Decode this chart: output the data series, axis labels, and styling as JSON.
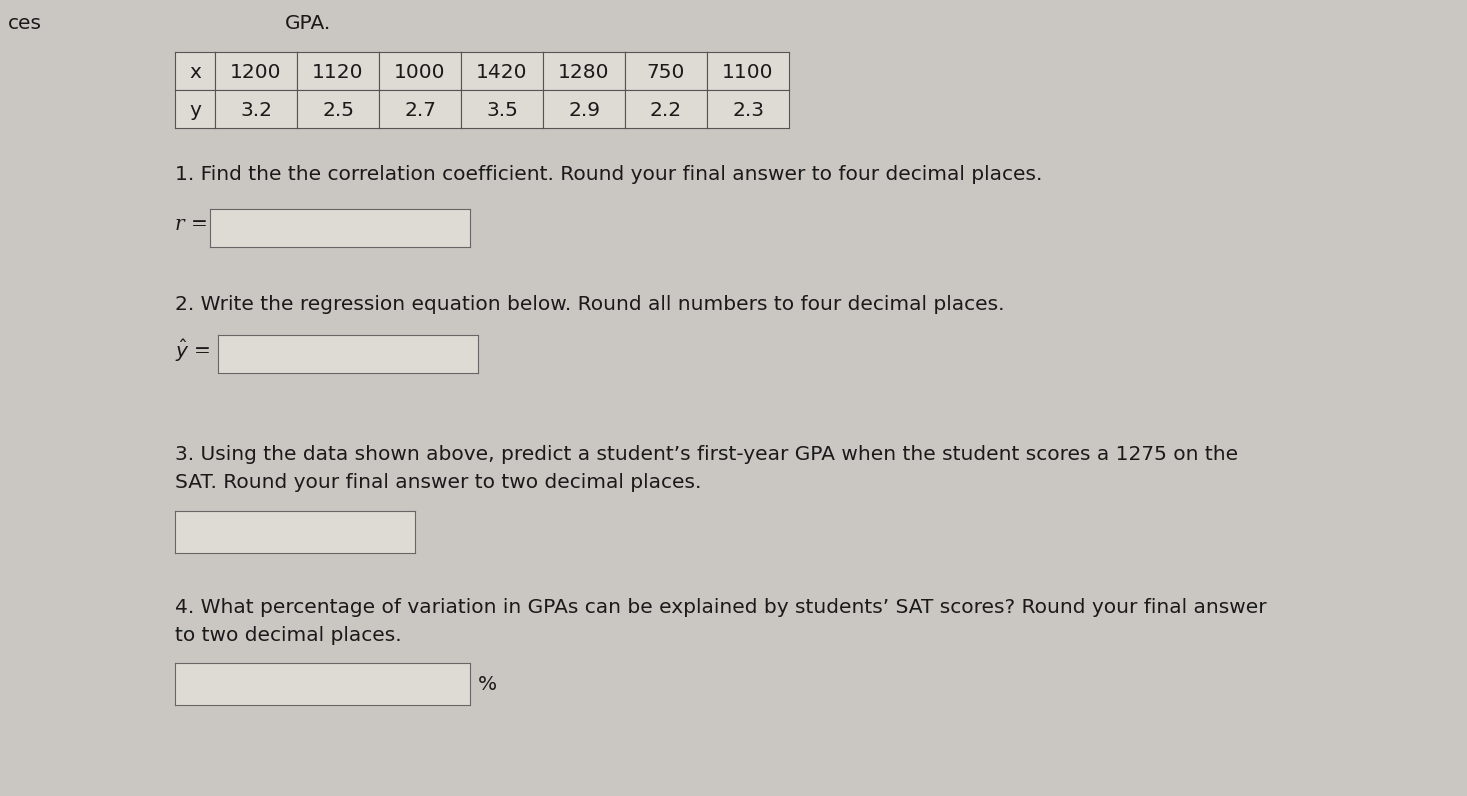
{
  "title_ces": "ces",
  "title_gpa": "GPA.",
  "table_x": [
    "1200",
    "1120",
    "1000",
    "1420",
    "1280",
    "750",
    "1100"
  ],
  "table_y": [
    "3.2",
    "2.5",
    "2.7",
    "3.5",
    "2.9",
    "2.2",
    "2.3"
  ],
  "row_labels": [
    "x",
    "y"
  ],
  "q1_text": "1. Find the the correlation coefficient. Round your final answer to four decimal places.",
  "q1_label": "r =",
  "q2_text": "2. Write the regression equation below. Round all numbers to four decimal places.",
  "q3_text_line1": "3. Using the data shown above, predict a student’s first-year GPA when the student scores a 1275 on the",
  "q3_text_line2": "SAT. Round your final answer to two decimal places.",
  "q4_text_line1": "4. What percentage of variation in GPAs can be explained by students’ SAT scores? Round your final answer",
  "q4_text_line2": "to two decimal places.",
  "q4_suffix": "%",
  "bg_color": "#cac7c2",
  "box_color": "#e8e5e0",
  "box_fill": "#dedad4",
  "text_color": "#1a1a1a",
  "font_size": 14.5,
  "font_size_small": 12
}
